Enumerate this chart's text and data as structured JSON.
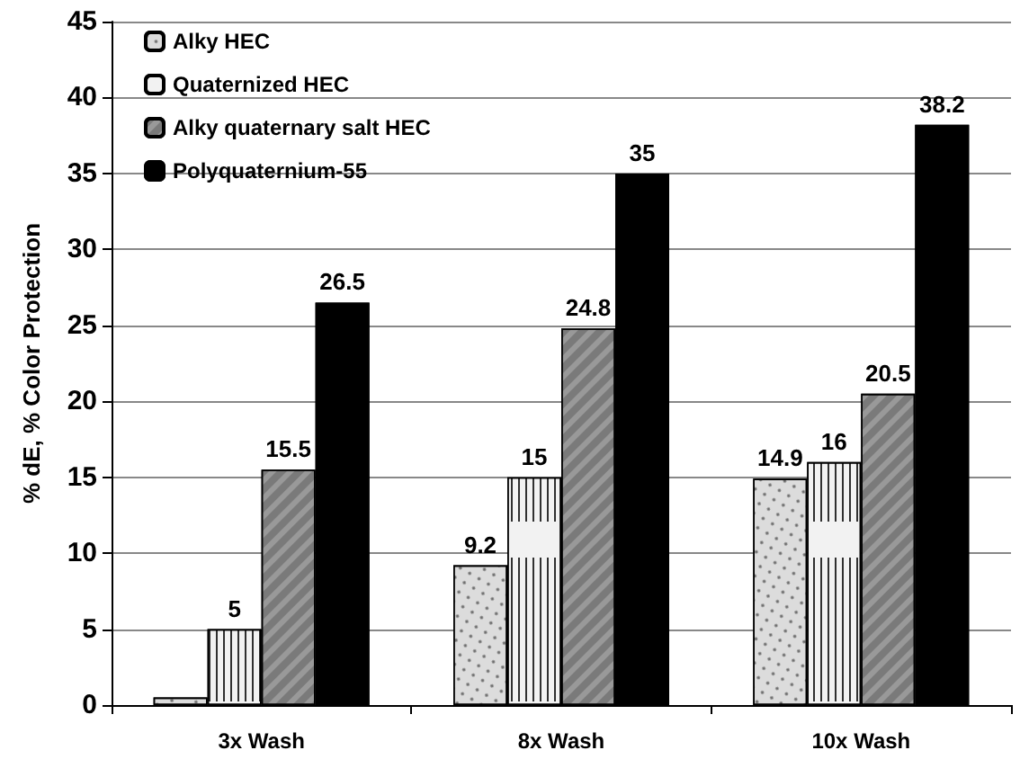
{
  "chart_data": {
    "type": "bar",
    "ylabel": "% dE, % Color Protection",
    "categories": [
      "3x Wash",
      "8x Wash",
      "10x Wash"
    ],
    "series": [
      {
        "name": "Alky HEC",
        "color": "#dcdcdc",
        "values": [
          0.5,
          9.2,
          14.9
        ],
        "value_labels": [
          null,
          "9.2",
          "14.9"
        ]
      },
      {
        "name": "Quaternized HEC",
        "color": "#f2f2f2",
        "values": [
          5,
          15,
          16
        ],
        "value_labels": [
          "5",
          "15",
          "16"
        ]
      },
      {
        "name": "Alky quaternary salt HEC",
        "color": "#999999",
        "values": [
          15.5,
          24.8,
          20.5
        ],
        "value_labels": [
          "15.5",
          "24.8",
          "20.5"
        ]
      },
      {
        "name": "Polyquaternium-55",
        "color": "#000000",
        "values": [
          26.5,
          35,
          38.2
        ],
        "value_labels": [
          "26.5",
          "35",
          "38.2"
        ]
      }
    ],
    "ylim": [
      0,
      45
    ],
    "yticks": [
      0,
      5,
      10,
      15,
      20,
      25,
      30,
      35,
      40,
      45
    ],
    "grid": "y",
    "legend": "top left"
  }
}
